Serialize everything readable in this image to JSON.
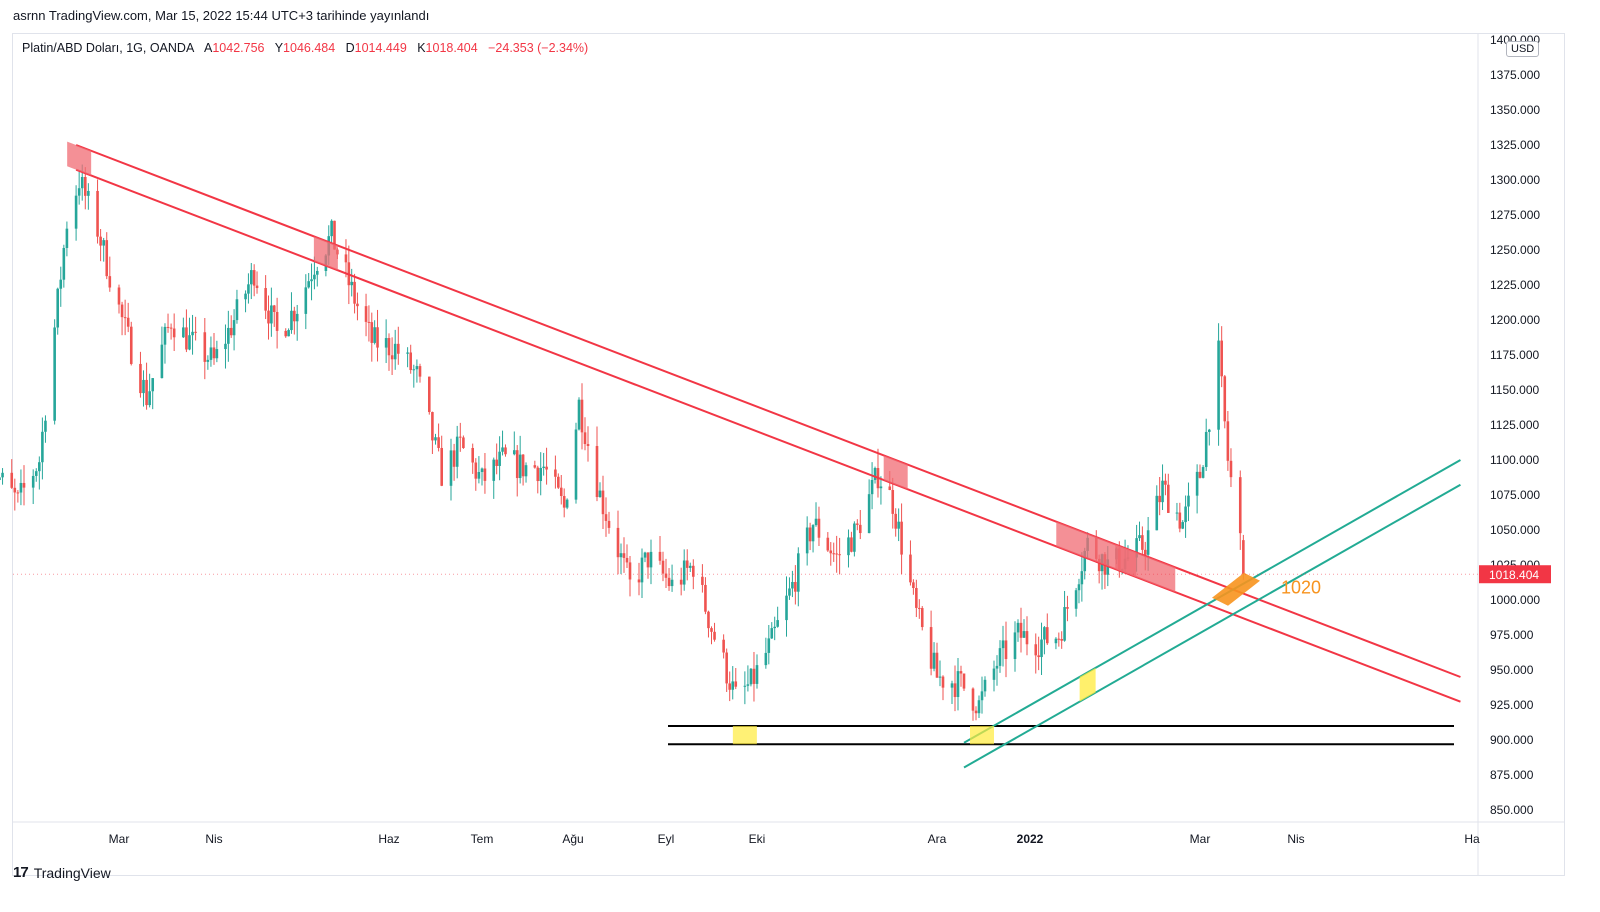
{
  "header": {
    "published": "asrnn TradingView.com, Mar 15, 2022 15:44 UTC+3 tarihinde yayınlandı"
  },
  "legend": {
    "symbol": "Platin/ABD Doları, 1G, OANDA",
    "open_label": "A",
    "open": "1042.756",
    "high_label": "Y",
    "high": "1046.484",
    "low_label": "D",
    "low": "1014.449",
    "close_label": "K",
    "close": "1018.404",
    "change": "−24.353 (−2.34%)"
  },
  "currency_button": "USD",
  "footer": {
    "logo": "17",
    "brand": "TradingView"
  },
  "colors": {
    "up": "#26a69a",
    "down": "#ef5350",
    "resistance": "#f23645",
    "support": "#22ab94",
    "level": "#000000",
    "target": "#f7931e",
    "highlight": "#ffeb3b"
  },
  "chart_data": {
    "type": "candlestick",
    "title": "Platin/ABD Doları, 1G, OANDA",
    "y_axis": {
      "ticks": [
        "1400.000",
        "1375.000",
        "1350.000",
        "1325.000",
        "1300.000",
        "1275.000",
        "1250.000",
        "1225.000",
        "1200.000",
        "1175.000",
        "1150.000",
        "1125.000",
        "1100.000",
        "1075.000",
        "1050.000",
        "1025.000",
        "1000.000",
        "975.000",
        "950.000",
        "925.000",
        "900.000",
        "875.000",
        "850.000"
      ],
      "range": [
        840,
        1410
      ],
      "last_price": "1018.404"
    },
    "x_axis": {
      "ticks": [
        "Mar",
        "Nis",
        "Haz",
        "Tem",
        "Ağu",
        "Eyl",
        "Eki",
        "Ara",
        "2022",
        "Mar",
        "Nis",
        "Ha"
      ]
    },
    "price_path": [
      [
        "2021-01-18",
        1095
      ],
      [
        "2021-01-27",
        1070
      ],
      [
        "2021-02-03",
        1100
      ],
      [
        "2021-02-12",
        1270
      ],
      [
        "2021-02-16",
        1300
      ],
      [
        "2021-02-22",
        1265
      ],
      [
        "2021-03-02",
        1200
      ],
      [
        "2021-03-10",
        1145
      ],
      [
        "2021-03-18",
        1200
      ],
      [
        "2021-03-24",
        1185
      ],
      [
        "2021-04-01",
        1170
      ],
      [
        "2021-04-08",
        1200
      ],
      [
        "2021-04-15",
        1235
      ],
      [
        "2021-04-23",
        1190
      ],
      [
        "2021-04-30",
        1210
      ],
      [
        "2021-05-06",
        1240
      ],
      [
        "2021-05-12",
        1260
      ],
      [
        "2021-05-20",
        1215
      ],
      [
        "2021-05-26",
        1185
      ],
      [
        "2021-06-03",
        1180
      ],
      [
        "2021-06-10",
        1160
      ],
      [
        "2021-06-18",
        1090
      ],
      [
        "2021-06-24",
        1110
      ],
      [
        "2021-07-01",
        1085
      ],
      [
        "2021-07-08",
        1100
      ],
      [
        "2021-07-15",
        1095
      ],
      [
        "2021-07-22",
        1095
      ],
      [
        "2021-07-29",
        1065
      ],
      [
        "2021-08-03",
        1140
      ],
      [
        "2021-08-10",
        1075
      ],
      [
        "2021-08-20",
        1010
      ],
      [
        "2021-08-26",
        1030
      ],
      [
        "2021-09-03",
        1010
      ],
      [
        "2021-09-10",
        1025
      ],
      [
        "2021-09-16",
        980
      ],
      [
        "2021-09-24",
        930
      ],
      [
        "2021-09-29",
        940
      ],
      [
        "2021-10-06",
        970
      ],
      [
        "2021-10-13",
        1010
      ],
      [
        "2021-10-20",
        1055
      ],
      [
        "2021-10-28",
        1030
      ],
      [
        "2021-11-04",
        1050
      ],
      [
        "2021-11-11",
        1090
      ],
      [
        "2021-11-16",
        1070
      ],
      [
        "2021-11-24",
        990
      ],
      [
        "2021-12-01",
        945
      ],
      [
        "2021-12-09",
        940
      ],
      [
        "2021-12-15",
        925
      ],
      [
        "2021-12-21",
        955
      ],
      [
        "2021-12-28",
        975
      ],
      [
        "2022-01-04",
        970
      ],
      [
        "2022-01-11",
        975
      ],
      [
        "2022-01-17",
        1015
      ],
      [
        "2022-01-21",
        1040
      ],
      [
        "2022-01-28",
        1025
      ],
      [
        "2022-02-04",
        1030
      ],
      [
        "2022-02-10",
        1040
      ],
      [
        "2022-02-16",
        1080
      ],
      [
        "2022-02-23",
        1055
      ],
      [
        "2022-03-01",
        1090
      ],
      [
        "2022-03-07",
        1175
      ],
      [
        "2022-03-10",
        1100
      ],
      [
        "2022-03-14",
        1042.756
      ],
      [
        "2022-03-15",
        1018.404
      ]
    ],
    "annotations": {
      "resistance_channel": {
        "from": [
          "2021-02-15",
          1325
        ],
        "to": [
          "2022-05-28",
          945
        ],
        "width": 13
      },
      "support_channel": {
        "from": [
          "2021-12-10",
          898
        ],
        "to": [
          "2022-05-28",
          1100
        ],
        "width": 13
      },
      "horizontal_levels": [
        910,
        897
      ],
      "target_label": "1020",
      "highlight_touches": {
        "red": [
          [
            "2021-02-16",
            1325
          ],
          [
            "2021-05-10",
            1262
          ],
          [
            "2021-11-17",
            1096
          ],
          [
            "2022-01-24",
            1045
          ],
          [
            "2022-02-10",
            1030
          ]
        ],
        "yellow": [
          [
            "2021-09-27",
            903
          ],
          [
            "2021-12-16",
            903
          ],
          [
            "2022-01-21",
            932
          ]
        ]
      }
    }
  }
}
